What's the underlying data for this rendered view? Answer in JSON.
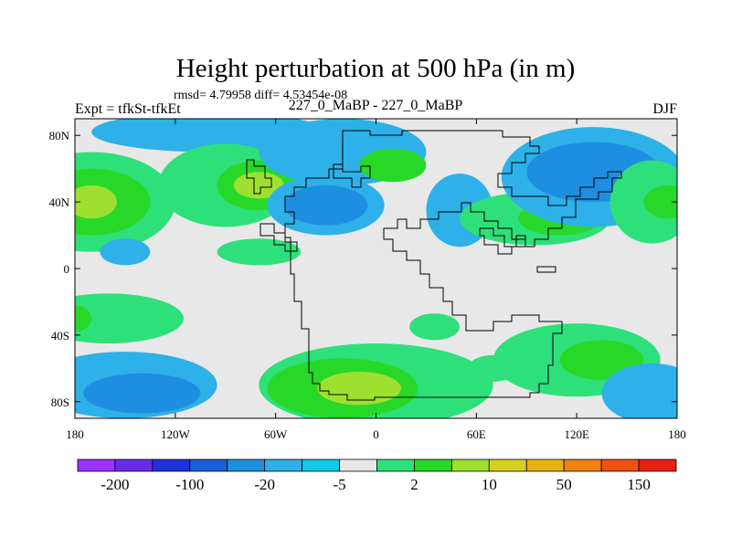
{
  "chart_data": {
    "type": "heatmap",
    "title": "Height perturbation at 500 hPa (in m)",
    "stats_line": "rmsd= 4.79958 diff= 4.53454e-08",
    "left_label": "Expt = tfkSt-tfkEt",
    "center_label": "227_0_MaBP - 227_0_MaBP",
    "right_label": "DJF",
    "x_tick_labels": [
      "180",
      "120W",
      "60W",
      "0",
      "60E",
      "120E",
      "180"
    ],
    "x_tick_values": [
      -180,
      -120,
      -60,
      0,
      60,
      120,
      180
    ],
    "y_tick_labels": [
      "80N",
      "40N",
      "0",
      "40S",
      "80S"
    ],
    "y_tick_values": [
      80,
      40,
      0,
      -40,
      -80
    ],
    "xlim": [
      -180,
      180
    ],
    "ylim": [
      -90,
      90
    ],
    "colorbar_labels": [
      "-200",
      "-100",
      "-20",
      "-5",
      "2",
      "10",
      "50",
      "150"
    ],
    "colorbar_colors": [
      "#9b30ff",
      "#6a2be8",
      "#2030d8",
      "#1b5fd8",
      "#1e8fe0",
      "#2eb0e8",
      "#10c8e8",
      "#e8e8e8",
      "#2ee07a",
      "#28d828",
      "#9ee030",
      "#d8d020",
      "#e8b010",
      "#f08010",
      "#f05010",
      "#e82010"
    ],
    "blobs": [
      {
        "lon": -170,
        "lat": 40,
        "rx": 50,
        "ry": 30,
        "level": 0
      },
      {
        "lon": -170,
        "lat": 40,
        "rx": 35,
        "ry": 20,
        "level": 1
      },
      {
        "lon": -170,
        "lat": 40,
        "rx": 15,
        "ry": 10,
        "level": 2
      },
      {
        "lon": -100,
        "lat": 82,
        "rx": 70,
        "ry": 12,
        "level": -2
      },
      {
        "lon": -90,
        "lat": 50,
        "rx": 40,
        "ry": 25,
        "level": 0
      },
      {
        "lon": -70,
        "lat": 50,
        "rx": 25,
        "ry": 15,
        "level": 1
      },
      {
        "lon": -70,
        "lat": 50,
        "rx": 15,
        "ry": 8,
        "level": 2
      },
      {
        "lon": -20,
        "lat": 70,
        "rx": 50,
        "ry": 20,
        "level": -2
      },
      {
        "lon": 10,
        "lat": 62,
        "rx": 20,
        "ry": 10,
        "level": 1
      },
      {
        "lon": -30,
        "lat": 38,
        "rx": 35,
        "ry": 18,
        "level": -2
      },
      {
        "lon": -30,
        "lat": 38,
        "rx": 25,
        "ry": 12,
        "level": -3
      },
      {
        "lon": -150,
        "lat": 10,
        "rx": 15,
        "ry": 8,
        "level": -2
      },
      {
        "lon": -70,
        "lat": 10,
        "rx": 25,
        "ry": 8,
        "level": 0
      },
      {
        "lon": 50,
        "lat": 35,
        "rx": 20,
        "ry": 22,
        "level": -2
      },
      {
        "lon": 95,
        "lat": 30,
        "rx": 45,
        "ry": 16,
        "level": 0
      },
      {
        "lon": 110,
        "lat": 30,
        "rx": 25,
        "ry": 10,
        "level": 1
      },
      {
        "lon": 130,
        "lat": 55,
        "rx": 55,
        "ry": 30,
        "level": -2
      },
      {
        "lon": 130,
        "lat": 58,
        "rx": 40,
        "ry": 18,
        "level": -3
      },
      {
        "lon": 165,
        "lat": 40,
        "rx": 25,
        "ry": 25,
        "level": 0
      },
      {
        "lon": 175,
        "lat": 40,
        "rx": 15,
        "ry": 10,
        "level": 1
      },
      {
        "lon": -160,
        "lat": -30,
        "rx": 45,
        "ry": 15,
        "level": 0
      },
      {
        "lon": -180,
        "lat": -30,
        "rx": 10,
        "ry": 8,
        "level": 1
      },
      {
        "lon": -150,
        "lat": -70,
        "rx": 55,
        "ry": 20,
        "level": -2
      },
      {
        "lon": -140,
        "lat": -75,
        "rx": 35,
        "ry": 12,
        "level": -3
      },
      {
        "lon": 0,
        "lat": -70,
        "rx": 70,
        "ry": 25,
        "level": 0
      },
      {
        "lon": -20,
        "lat": -72,
        "rx": 45,
        "ry": 18,
        "level": 1
      },
      {
        "lon": -10,
        "lat": -72,
        "rx": 25,
        "ry": 10,
        "level": 2
      },
      {
        "lon": 120,
        "lat": -55,
        "rx": 50,
        "ry": 22,
        "level": 0
      },
      {
        "lon": 135,
        "lat": -55,
        "rx": 25,
        "ry": 12,
        "level": 1
      },
      {
        "lon": 165,
        "lat": -75,
        "rx": 30,
        "ry": 18,
        "level": -2
      },
      {
        "lon": 35,
        "lat": -35,
        "rx": 15,
        "ry": 8,
        "level": 0
      },
      {
        "lon": 70,
        "lat": -60,
        "rx": 15,
        "ry": 8,
        "level": 0
      }
    ]
  }
}
